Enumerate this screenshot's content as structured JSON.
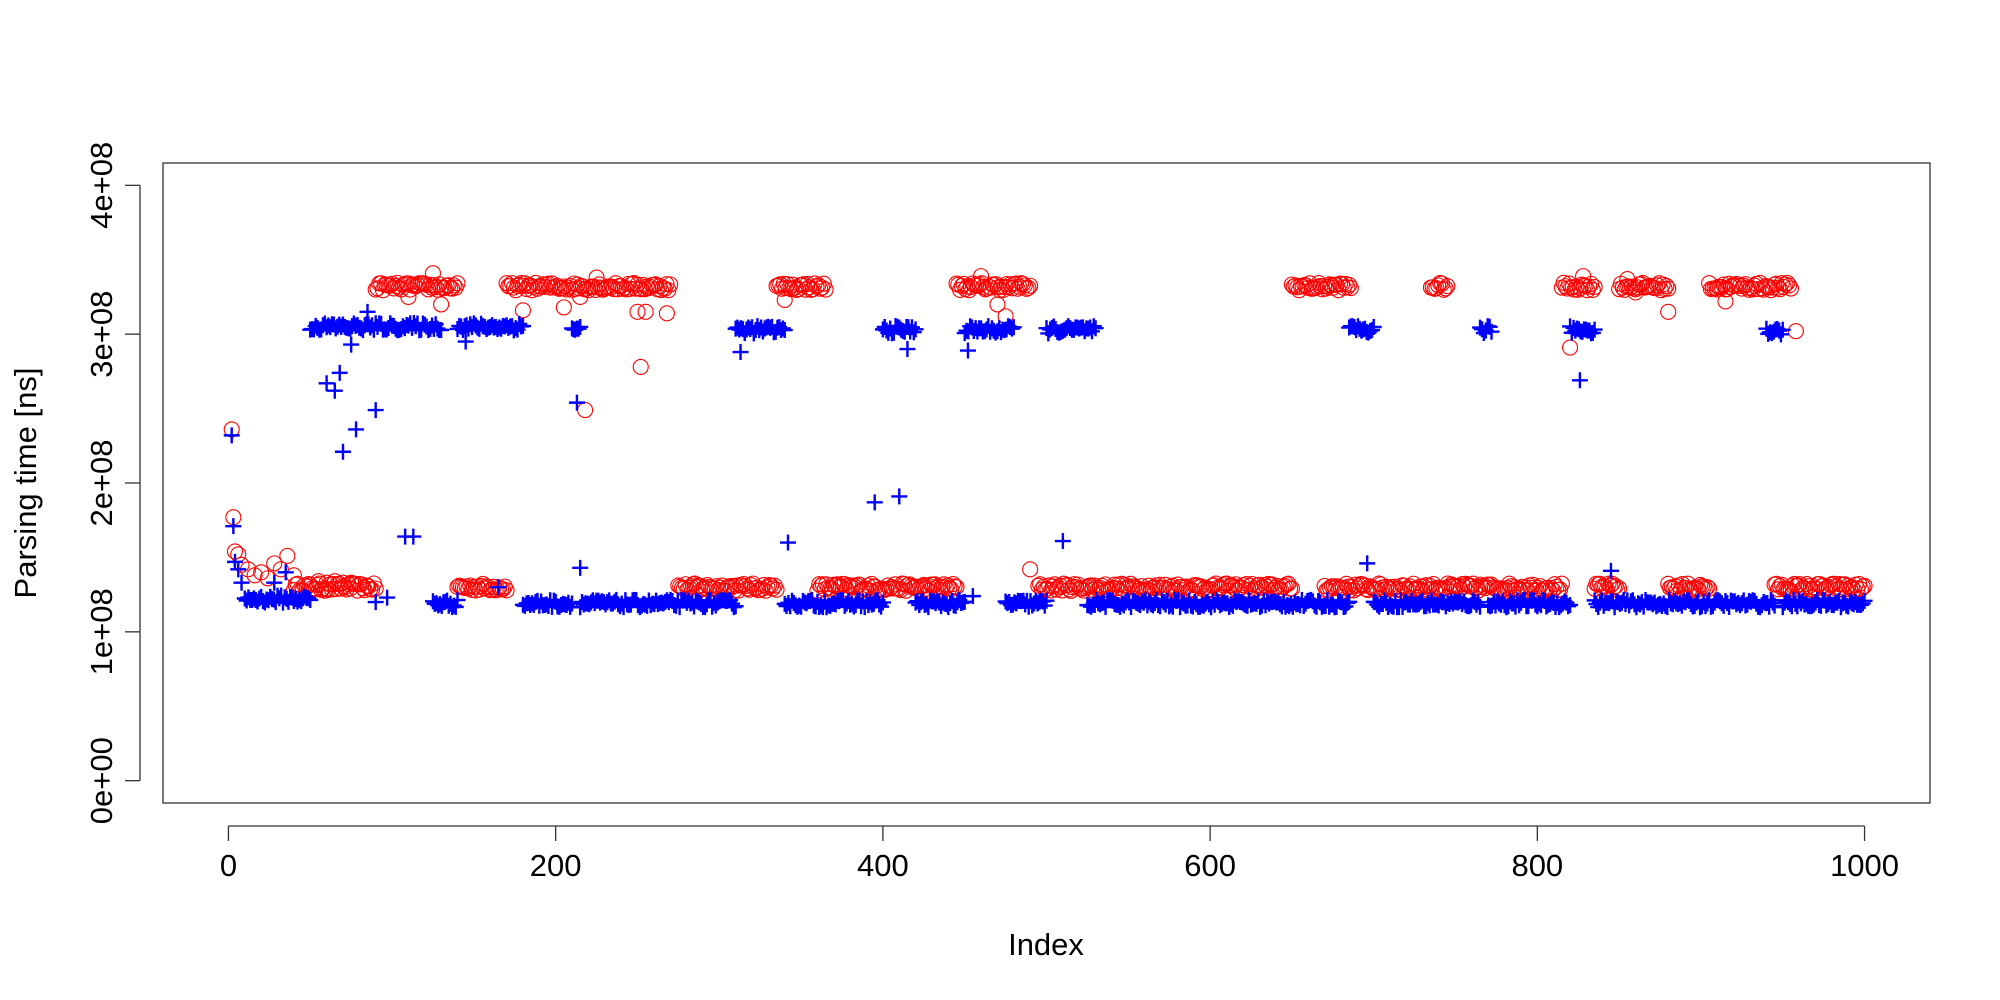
{
  "chart_data": {
    "type": "scatter",
    "xlabel": "Index",
    "ylabel": "Parsing time [ns]",
    "xlim": [
      -40,
      1040
    ],
    "ylim": [
      -15000000,
      415000000
    ],
    "x_ticks": [
      0,
      200,
      400,
      600,
      800,
      1000
    ],
    "x_tick_labels": [
      "0",
      "200",
      "400",
      "600",
      "800",
      "1000"
    ],
    "y_ticks": [
      0,
      100000000,
      200000000,
      300000000,
      400000000
    ],
    "y_tick_labels": [
      "0e+00",
      "1e+08",
      "2e+08",
      "3e+08",
      "4e+08"
    ],
    "grid": false,
    "series": [
      {
        "marker": "open-circle",
        "color": "#ff0000",
        "segments": [
          {
            "x_start": 40,
            "x_end": 90,
            "y": 130000000
          },
          {
            "x_start": 140,
            "x_end": 170,
            "y": 130000000
          },
          {
            "x_start": 275,
            "x_end": 335,
            "y": 130000000
          },
          {
            "x_start": 360,
            "x_end": 445,
            "y": 130000000
          },
          {
            "x_start": 495,
            "x_end": 650,
            "y": 130000000
          },
          {
            "x_start": 670,
            "x_end": 815,
            "y": 130000000
          },
          {
            "x_start": 835,
            "x_end": 850,
            "y": 130000000
          },
          {
            "x_start": 880,
            "x_end": 905,
            "y": 130000000
          },
          {
            "x_start": 945,
            "x_end": 1000,
            "y": 130000000
          },
          {
            "x_start": 90,
            "x_end": 140,
            "y": 332000000
          },
          {
            "x_start": 170,
            "x_end": 270,
            "y": 332000000
          },
          {
            "x_start": 335,
            "x_end": 365,
            "y": 332000000
          },
          {
            "x_start": 445,
            "x_end": 490,
            "y": 332000000
          },
          {
            "x_start": 650,
            "x_end": 685,
            "y": 332000000
          },
          {
            "x_start": 735,
            "x_end": 745,
            "y": 332000000
          },
          {
            "x_start": 815,
            "x_end": 835,
            "y": 332000000
          },
          {
            "x_start": 850,
            "x_end": 880,
            "y": 332000000
          },
          {
            "x_start": 905,
            "x_end": 955,
            "y": 332000000
          }
        ],
        "extra_points": [
          [
            2,
            236000000
          ],
          [
            3,
            177000000
          ],
          [
            4,
            154000000
          ],
          [
            6,
            152000000
          ],
          [
            8,
            145000000
          ],
          [
            12,
            142000000
          ],
          [
            16,
            138000000
          ],
          [
            20,
            140000000
          ],
          [
            24,
            136000000
          ],
          [
            28,
            146000000
          ],
          [
            32,
            142000000
          ],
          [
            36,
            151000000
          ],
          [
            40,
            138000000
          ],
          [
            55,
            134000000
          ],
          [
            60,
            133000000
          ],
          [
            65,
            134000000
          ],
          [
            70,
            133000000
          ],
          [
            75,
            133000000
          ],
          [
            80,
            132000000
          ],
          [
            85,
            131000000
          ],
          [
            110,
            325000000
          ],
          [
            125,
            341000000
          ],
          [
            130,
            320000000
          ],
          [
            180,
            316000000
          ],
          [
            205,
            318000000
          ],
          [
            215,
            325000000
          ],
          [
            225,
            338000000
          ],
          [
            250,
            315000000
          ],
          [
            252,
            278000000
          ],
          [
            255,
            315000000
          ],
          [
            268,
            314000000
          ],
          [
            218,
            249000000
          ],
          [
            340,
            323000000
          ],
          [
            460,
            339000000
          ],
          [
            470,
            320000000
          ],
          [
            475,
            312000000
          ],
          [
            490,
            142000000
          ],
          [
            686,
            331000000
          ],
          [
            820,
            291000000
          ],
          [
            828,
            339000000
          ],
          [
            855,
            337000000
          ],
          [
            860,
            328000000
          ],
          [
            880,
            315000000
          ],
          [
            910,
            330000000
          ],
          [
            915,
            322000000
          ],
          [
            958,
            302000000
          ]
        ]
      },
      {
        "marker": "plus",
        "color": "#0000ff",
        "segments": [
          {
            "x_start": 10,
            "x_end": 50,
            "y": 122000000
          },
          {
            "x_start": 125,
            "x_end": 140,
            "y": 119000000
          },
          {
            "x_start": 180,
            "x_end": 210,
            "y": 119000000
          },
          {
            "x_start": 215,
            "x_end": 310,
            "y": 119000000
          },
          {
            "x_start": 340,
            "x_end": 400,
            "y": 119000000
          },
          {
            "x_start": 420,
            "x_end": 450,
            "y": 119000000
          },
          {
            "x_start": 475,
            "x_end": 500,
            "y": 119000000
          },
          {
            "x_start": 525,
            "x_end": 685,
            "y": 119000000
          },
          {
            "x_start": 700,
            "x_end": 765,
            "y": 119000000
          },
          {
            "x_start": 770,
            "x_end": 820,
            "y": 119000000
          },
          {
            "x_start": 835,
            "x_end": 945,
            "y": 119000000
          },
          {
            "x_start": 950,
            "x_end": 1000,
            "y": 119000000
          },
          {
            "x_start": 50,
            "x_end": 130,
            "y": 305000000
          },
          {
            "x_start": 140,
            "x_end": 180,
            "y": 305000000
          },
          {
            "x_start": 210,
            "x_end": 215,
            "y": 304000000
          },
          {
            "x_start": 310,
            "x_end": 340,
            "y": 303000000
          },
          {
            "x_start": 400,
            "x_end": 420,
            "y": 303000000
          },
          {
            "x_start": 450,
            "x_end": 480,
            "y": 303000000
          },
          {
            "x_start": 500,
            "x_end": 530,
            "y": 303000000
          },
          {
            "x_start": 685,
            "x_end": 700,
            "y": 303000000
          },
          {
            "x_start": 765,
            "x_end": 772,
            "y": 303000000
          },
          {
            "x_start": 820,
            "x_end": 835,
            "y": 303000000
          },
          {
            "x_start": 940,
            "x_end": 950,
            "y": 302000000
          }
        ],
        "extra_points": [
          [
            2,
            232000000
          ],
          [
            3,
            171000000
          ],
          [
            4,
            147000000
          ],
          [
            6,
            142000000
          ],
          [
            8,
            133000000
          ],
          [
            28,
            133000000
          ],
          [
            35,
            140000000
          ],
          [
            60,
            267000000
          ],
          [
            65,
            262000000
          ],
          [
            68,
            274000000
          ],
          [
            70,
            221000000
          ],
          [
            75,
            293000000
          ],
          [
            78,
            236000000
          ],
          [
            85,
            315000000
          ],
          [
            90,
            249000000
          ],
          [
            90,
            120000000
          ],
          [
            97,
            123000000
          ],
          [
            108,
            164000000
          ],
          [
            113,
            164000000
          ],
          [
            145,
            295000000
          ],
          [
            165,
            130000000
          ],
          [
            213,
            254000000
          ],
          [
            215,
            143000000
          ],
          [
            313,
            288000000
          ],
          [
            342,
            160000000
          ],
          [
            395,
            187000000
          ],
          [
            410,
            191000000
          ],
          [
            415,
            290000000
          ],
          [
            452,
            289000000
          ],
          [
            455,
            124000000
          ],
          [
            510,
            161000000
          ],
          [
            696,
            146000000
          ],
          [
            826,
            269000000
          ],
          [
            845,
            141000000
          ]
        ]
      }
    ]
  }
}
